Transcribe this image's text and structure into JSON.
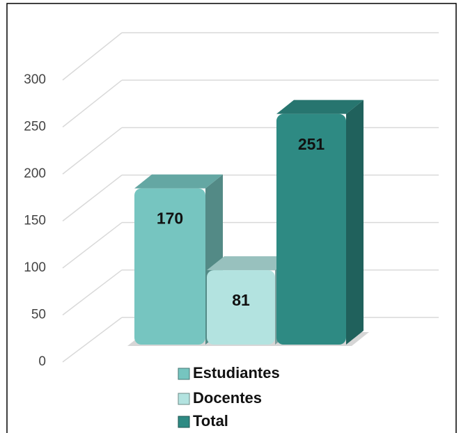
{
  "chart_data": {
    "type": "bar3d",
    "categories": [
      "Estudiantes",
      "Docentes",
      "Total"
    ],
    "values": [
      170,
      81,
      251
    ],
    "colors": [
      "#76c5c0",
      "#b3e3e0",
      "#2e8a83"
    ],
    "ylim": [
      0,
      300
    ],
    "yticks": [
      0,
      50,
      100,
      150,
      200,
      250,
      300
    ],
    "grid": true,
    "legend": "bottom"
  }
}
